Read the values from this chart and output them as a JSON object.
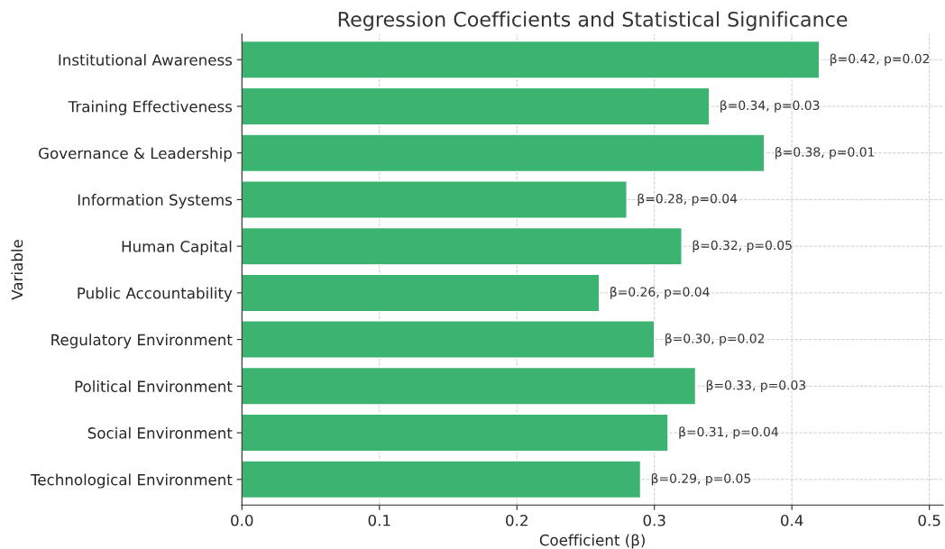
{
  "chart_data": {
    "type": "bar",
    "orientation": "horizontal",
    "title": "Regression Coefficients and Statistical Significance",
    "xlabel": "Coefficient (β)",
    "ylabel": "Variable",
    "categories": [
      "Institutional Awareness",
      "Training Effectiveness",
      "Governance & Leadership",
      "Information Systems",
      "Human Capital",
      "Public Accountability",
      "Regulatory Environment",
      "Political Environment",
      "Social Environment",
      "Technological Environment"
    ],
    "values": [
      0.42,
      0.34,
      0.38,
      0.28,
      0.32,
      0.26,
      0.3,
      0.33,
      0.31,
      0.29
    ],
    "value_labels": [
      "β=0.42, p=0.02",
      "β=0.34, p=0.03",
      "β=0.38, p=0.01",
      "β=0.28, p=0.04",
      "β=0.32, p=0.05",
      "β=0.26, p=0.04",
      "β=0.30, p=0.02",
      "β=0.33, p=0.03",
      "β=0.31, p=0.04",
      "β=0.29, p=0.05"
    ],
    "color": "#3cb371",
    "xlim": [
      0,
      0.51
    ],
    "xticks": [
      {
        "value": 0,
        "label": "0.0"
      },
      0.1,
      0.2,
      0.3,
      0.4,
      0.5
    ],
    "grid": true
  }
}
